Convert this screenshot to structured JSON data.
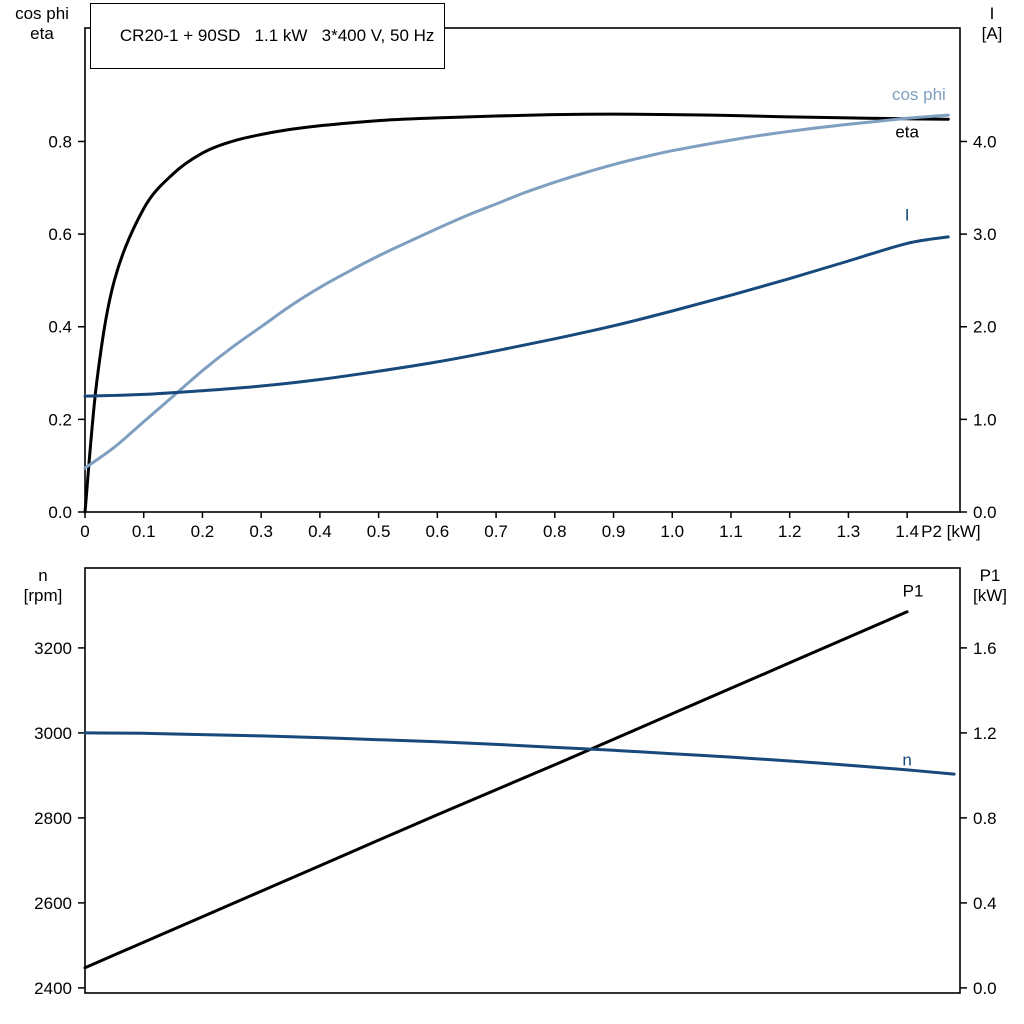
{
  "colors": {
    "black": "#000000",
    "light_blue": "#7f9fc1",
    "dark_blue": "#17497c",
    "axis": "#000000",
    "background": "#ffffff"
  },
  "chart_data": [
    {
      "type": "line",
      "title": "CR20-1 + 90SD   1.1 kW   3*400 V, 50 Hz",
      "xlabel": "P2 [kW]",
      "xlim": [
        0,
        1.49
      ],
      "xticks": [
        0,
        0.1,
        0.2,
        0.3,
        0.4,
        0.5,
        0.6,
        0.7,
        0.8,
        0.9,
        1.0,
        1.1,
        1.2,
        1.3,
        1.4
      ],
      "xtick_labels": [
        "0",
        "0.1",
        "0.2",
        "0.3",
        "0.4",
        "0.5",
        "0.6",
        "0.7",
        "0.8",
        "0.9",
        "1.0",
        "1.1",
        "1.2",
        "1.3",
        "1.4"
      ],
      "grid": false,
      "legend_position": "inline-right",
      "left_axis": {
        "title": [
          "cos phi",
          "eta"
        ],
        "lim": [
          0,
          1.045
        ],
        "ticks": [
          0,
          0.2,
          0.4,
          0.6,
          0.8
        ],
        "tick_labels": [
          "0.0",
          "0.2",
          "0.4",
          "0.6",
          "0.8"
        ]
      },
      "right_axis": {
        "title": [
          "I",
          "[A]"
        ],
        "lim": [
          0,
          5.225
        ],
        "ticks": [
          0,
          1,
          2,
          3,
          4
        ],
        "tick_labels": [
          "0.0",
          "1.0",
          "2.0",
          "3.0",
          "4.0"
        ]
      },
      "series": [
        {
          "name": "eta",
          "axis": "left",
          "color": "#000000",
          "width": 3,
          "x": [
            0,
            0.02,
            0.05,
            0.1,
            0.15,
            0.2,
            0.25,
            0.3,
            0.35,
            0.4,
            0.5,
            0.6,
            0.7,
            0.8,
            0.9,
            1.0,
            1.1,
            1.2,
            1.3,
            1.4,
            1.47
          ],
          "y": [
            0,
            0.28,
            0.5,
            0.655,
            0.73,
            0.775,
            0.8,
            0.815,
            0.826,
            0.834,
            0.845,
            0.851,
            0.855,
            0.858,
            0.859,
            0.858,
            0.856,
            0.853,
            0.851,
            0.849,
            0.848
          ],
          "label": {
            "text": "eta",
            "x": 1.4,
            "y": 0.822
          }
        },
        {
          "name": "cos phi",
          "axis": "left",
          "color": "#7f9fc1",
          "width": 3,
          "x": [
            0,
            0.05,
            0.1,
            0.15,
            0.2,
            0.25,
            0.3,
            0.35,
            0.4,
            0.45,
            0.5,
            0.55,
            0.6,
            0.65,
            0.7,
            0.75,
            0.8,
            0.85,
            0.9,
            0.95,
            1.0,
            1.1,
            1.2,
            1.3,
            1.4,
            1.47
          ],
          "y": [
            0.095,
            0.14,
            0.195,
            0.25,
            0.305,
            0.355,
            0.4,
            0.445,
            0.485,
            0.52,
            0.553,
            0.583,
            0.612,
            0.64,
            0.665,
            0.69,
            0.712,
            0.732,
            0.75,
            0.766,
            0.78,
            0.803,
            0.822,
            0.837,
            0.85,
            0.857
          ],
          "label": {
            "text": "cos phi",
            "x": 1.42,
            "y": 0.902
          }
        },
        {
          "name": "I",
          "axis": "right",
          "color": "#17497c",
          "width": 3,
          "x": [
            0,
            0.1,
            0.2,
            0.3,
            0.4,
            0.5,
            0.6,
            0.7,
            0.8,
            0.9,
            1.0,
            1.1,
            1.2,
            1.3,
            1.4,
            1.47
          ],
          "y": [
            1.25,
            1.27,
            1.31,
            1.36,
            1.43,
            1.52,
            1.62,
            1.74,
            1.87,
            2.01,
            2.17,
            2.34,
            2.52,
            2.71,
            2.9,
            2.97
          ],
          "label": {
            "text": "I",
            "x": 1.4,
            "y": 3.21
          }
        }
      ]
    },
    {
      "type": "line",
      "title": "",
      "xlabel": "",
      "xlim": [
        0,
        1.49
      ],
      "xticks": [],
      "xtick_labels": [],
      "grid": false,
      "legend_position": "inline-right",
      "left_axis": {
        "title": [
          "n",
          "[rpm]"
        ],
        "lim": [
          2388,
          3388
        ],
        "ticks": [
          2400,
          2600,
          2800,
          3000,
          3200
        ],
        "tick_labels": [
          "2400",
          "2600",
          "2800",
          "3000",
          "3200"
        ]
      },
      "right_axis": {
        "title": [
          "P1",
          "[kW]"
        ],
        "lim": [
          -0.024,
          1.976
        ],
        "ticks": [
          0,
          0.4,
          0.8,
          1.2,
          1.6
        ],
        "tick_labels": [
          "0.0",
          "0.4",
          "0.8",
          "1.2",
          "1.6"
        ]
      },
      "series": [
        {
          "name": "P1",
          "axis": "right",
          "color": "#000000",
          "width": 3,
          "x": [
            0,
            0.2,
            0.4,
            0.6,
            0.8,
            1.0,
            1.2,
            1.4
          ],
          "y": [
            0.095,
            0.335,
            0.575,
            0.815,
            1.05,
            1.29,
            1.53,
            1.77
          ],
          "label": {
            "text": "P1",
            "x": 1.41,
            "y": 1.87
          }
        },
        {
          "name": "n",
          "axis": "left",
          "color": "#17497c",
          "width": 3,
          "x": [
            0,
            0.1,
            0.2,
            0.3,
            0.4,
            0.5,
            0.6,
            0.7,
            0.8,
            0.9,
            1.0,
            1.1,
            1.2,
            1.3,
            1.4,
            1.48
          ],
          "y": [
            3000,
            2999,
            2996,
            2993,
            2989,
            2984,
            2979,
            2973,
            2966,
            2959,
            2951,
            2943,
            2934,
            2924,
            2913,
            2903
          ],
          "label": {
            "text": "n",
            "x": 1.4,
            "y": 2938
          }
        }
      ]
    }
  ]
}
